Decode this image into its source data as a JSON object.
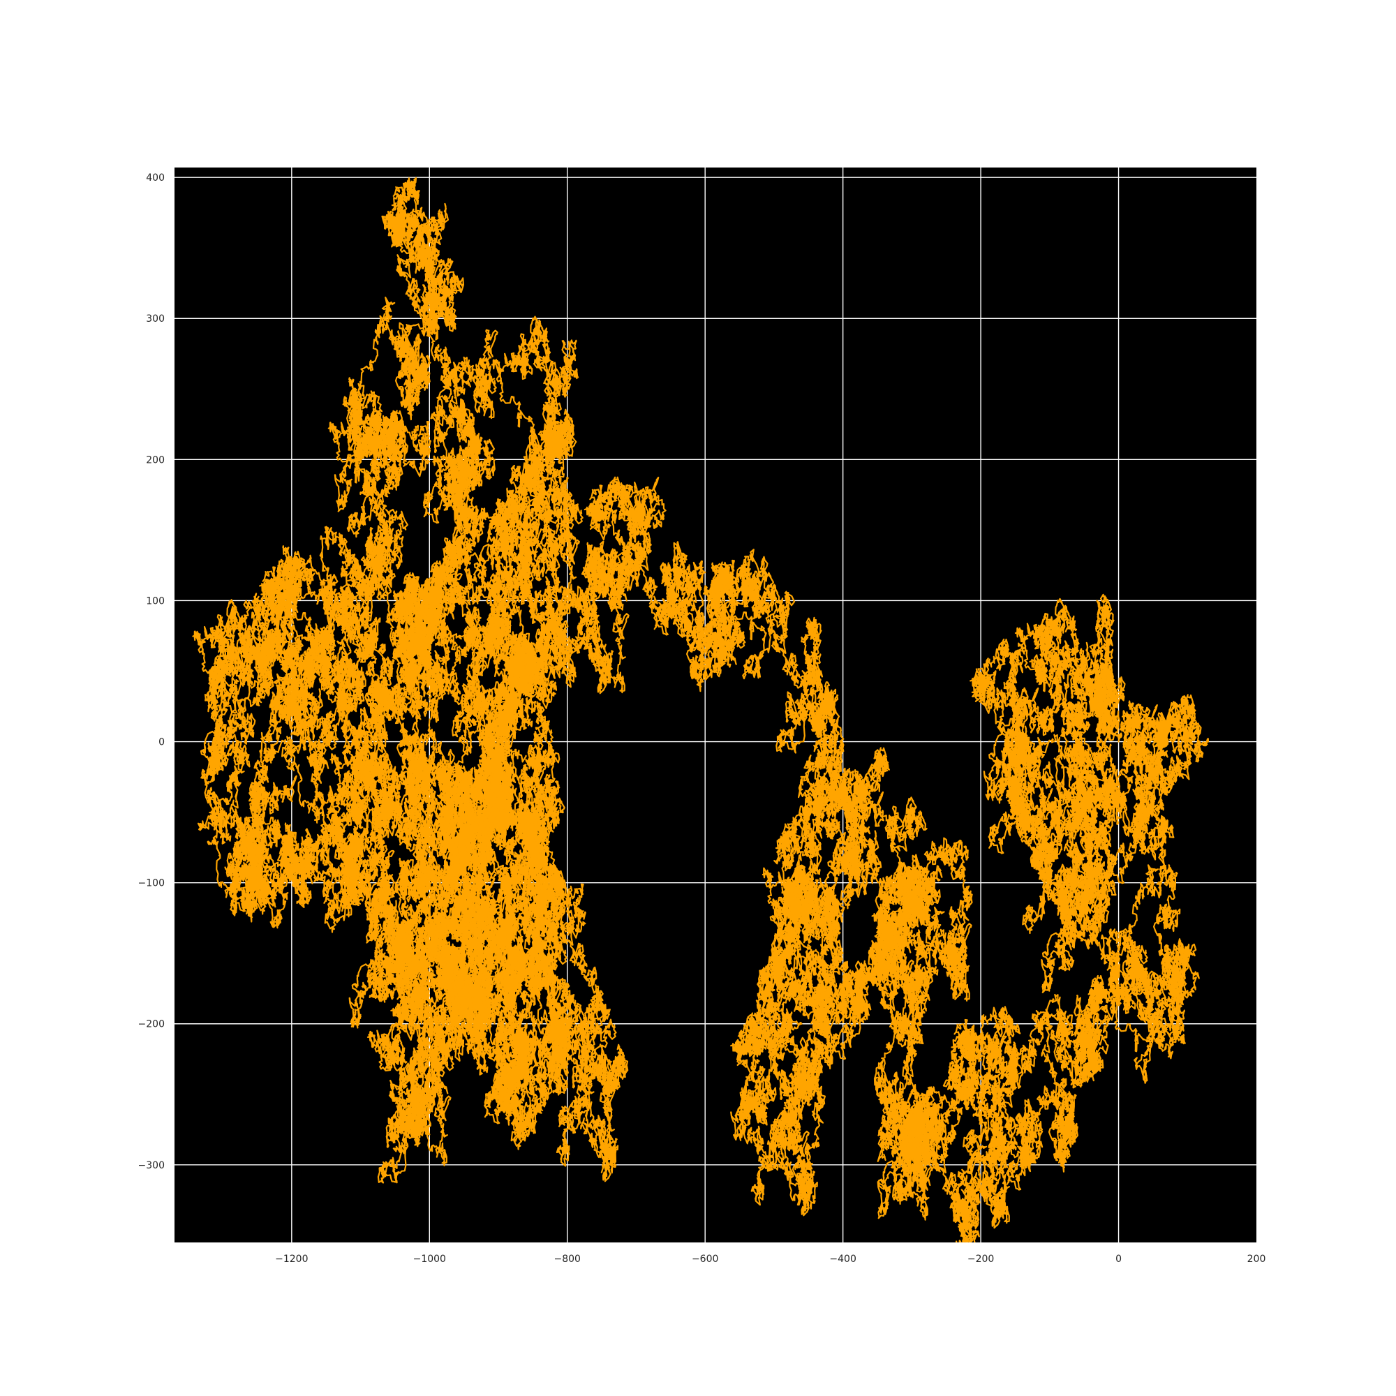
{
  "chart_data": {
    "type": "line",
    "title": "",
    "xlabel": "",
    "ylabel": "",
    "xlim": [
      -1370,
      200
    ],
    "ylim": [
      -355,
      407
    ],
    "xticks": [
      -1200,
      -1000,
      -800,
      -600,
      -400,
      -200,
      0,
      200
    ],
    "yticks": [
      -300,
      -200,
      -100,
      0,
      100,
      200,
      300,
      400
    ],
    "xtick_labels": [
      "−1200",
      "−1000",
      "−800",
      "−600",
      "−400",
      "−200",
      "0",
      "200"
    ],
    "ytick_labels": [
      "−300",
      "−200",
      "−100",
      "0",
      "100",
      "200",
      "300",
      "400"
    ],
    "grid": true,
    "legend": "none",
    "colors": {
      "line": "#FFA500",
      "plot_background": "#000000",
      "grid": "#FFFFFF",
      "figure_background": "#FFFFFF"
    },
    "series": [
      {
        "style": "random-walk",
        "values": [
          [
            0,
            0
          ],
          [
            90,
            -20
          ],
          [
            130,
            0
          ],
          [
            40,
            20
          ],
          [
            -20,
            60
          ],
          [
            -20,
            95
          ],
          [
            -60,
            50
          ],
          [
            -10,
            10
          ],
          [
            -80,
            -10
          ],
          [
            -140,
            -20
          ],
          [
            -100,
            20
          ],
          [
            -140,
            60
          ],
          [
            -60,
            0
          ],
          [
            -30,
            -30
          ],
          [
            -10,
            -80
          ],
          [
            -60,
            -100
          ],
          [
            -20,
            -120
          ],
          [
            60,
            -80
          ],
          [
            100,
            -150
          ],
          [
            60,
            -200
          ],
          [
            -20,
            -210
          ],
          [
            -60,
            -180
          ],
          [
            -80,
            -250
          ],
          [
            -130,
            -230
          ],
          [
            -160,
            -200
          ],
          [
            -200,
            -220
          ],
          [
            -180,
            -280
          ],
          [
            -210,
            -320
          ],
          [
            -240,
            -260
          ],
          [
            -280,
            -280
          ],
          [
            -300,
            -220
          ],
          [
            -320,
            -200
          ],
          [
            -290,
            -160
          ],
          [
            -260,
            -90
          ],
          [
            -240,
            -120
          ],
          [
            -230,
            -70
          ],
          [
            -290,
            -60
          ],
          [
            -350,
            -30
          ],
          [
            -360,
            -80
          ],
          [
            -330,
            -110
          ],
          [
            -370,
            -160
          ],
          [
            -400,
            -120
          ],
          [
            -440,
            -90
          ],
          [
            -430,
            -150
          ],
          [
            -480,
            -130
          ],
          [
            -460,
            -200
          ],
          [
            -500,
            -210
          ],
          [
            -480,
            -260
          ],
          [
            -440,
            -240
          ],
          [
            -410,
            -160
          ],
          [
            -420,
            -60
          ],
          [
            -410,
            0
          ],
          [
            -420,
            40
          ],
          [
            -440,
            80
          ],
          [
            -480,
            100
          ],
          [
            -540,
            100
          ],
          [
            -600,
            120
          ],
          [
            -630,
            130
          ],
          [
            -660,
            160
          ],
          [
            -700,
            170
          ],
          [
            -720,
            140
          ],
          [
            -760,
            120
          ],
          [
            -800,
            100
          ],
          [
            -820,
            40
          ],
          [
            -860,
            70
          ],
          [
            -880,
            40
          ],
          [
            -920,
            80
          ],
          [
            -960,
            60
          ],
          [
            -990,
            100
          ],
          [
            -1040,
            100
          ],
          [
            -1080,
            60
          ],
          [
            -1120,
            100
          ],
          [
            -1180,
            120
          ],
          [
            -1150,
            150
          ],
          [
            -1080,
            140
          ],
          [
            -1040,
            160
          ],
          [
            -1000,
            210
          ],
          [
            -1080,
            230
          ],
          [
            -1060,
            310
          ],
          [
            -1000,
            330
          ],
          [
            -990,
            360
          ],
          [
            -960,
            330
          ],
          [
            -920,
            280
          ],
          [
            -950,
            240
          ],
          [
            -910,
            200
          ],
          [
            -880,
            160
          ],
          [
            -840,
            180
          ],
          [
            -820,
            240
          ],
          [
            -800,
            270
          ],
          [
            -790,
            210
          ],
          [
            -830,
            160
          ],
          [
            -860,
            120
          ],
          [
            -890,
            100
          ],
          [
            -930,
            130
          ],
          [
            -960,
            110
          ],
          [
            -1000,
            70
          ],
          [
            -1030,
            50
          ],
          [
            -1100,
            30
          ],
          [
            -1140,
            60
          ],
          [
            -1180,
            40
          ],
          [
            -1220,
            90
          ],
          [
            -1250,
            100
          ],
          [
            -1230,
            40
          ],
          [
            -1270,
            10
          ],
          [
            -1300,
            -50
          ],
          [
            -1260,
            -60
          ],
          [
            -1200,
            -40
          ],
          [
            -1180,
            -80
          ],
          [
            -1140,
            -40
          ],
          [
            -1100,
            -20
          ],
          [
            -1060,
            -50
          ],
          [
            -1050,
            -120
          ],
          [
            -1020,
            -160
          ],
          [
            -1000,
            -200
          ],
          [
            -1020,
            -250
          ],
          [
            -980,
            -220
          ],
          [
            -940,
            -180
          ],
          [
            -900,
            -210
          ],
          [
            -860,
            -190
          ],
          [
            -820,
            -230
          ],
          [
            -790,
            -200
          ],
          [
            -760,
            -180
          ],
          [
            -740,
            -240
          ],
          [
            -760,
            -160
          ],
          [
            -790,
            -110
          ],
          [
            -820,
            -90
          ],
          [
            -840,
            -120
          ],
          [
            -880,
            -100
          ],
          [
            -920,
            -80
          ],
          [
            -900,
            -40
          ],
          [
            -860,
            -20
          ],
          [
            -820,
            -10
          ],
          [
            -810,
            -50
          ],
          [
            -880,
            -60
          ],
          [
            -940,
            -30
          ],
          [
            -960,
            -70
          ],
          [
            -1000,
            -60
          ],
          [
            -1040,
            -30
          ],
          [
            -1010,
            -100
          ],
          [
            -960,
            -120
          ],
          [
            -930,
            -150
          ],
          [
            -970,
            -170
          ],
          [
            -1010,
            -140
          ],
          [
            -990,
            -90
          ],
          [
            -950,
            -100
          ],
          [
            -910,
            -130
          ],
          [
            -880,
            -170
          ],
          [
            -850,
            -150
          ],
          [
            -870,
            -110
          ],
          [
            -920,
            -90
          ],
          [
            -960,
            -50
          ],
          [
            -980,
            -20
          ],
          [
            -940,
            0
          ],
          [
            -900,
            10
          ],
          [
            -860,
            -10
          ]
        ]
      }
    ]
  }
}
